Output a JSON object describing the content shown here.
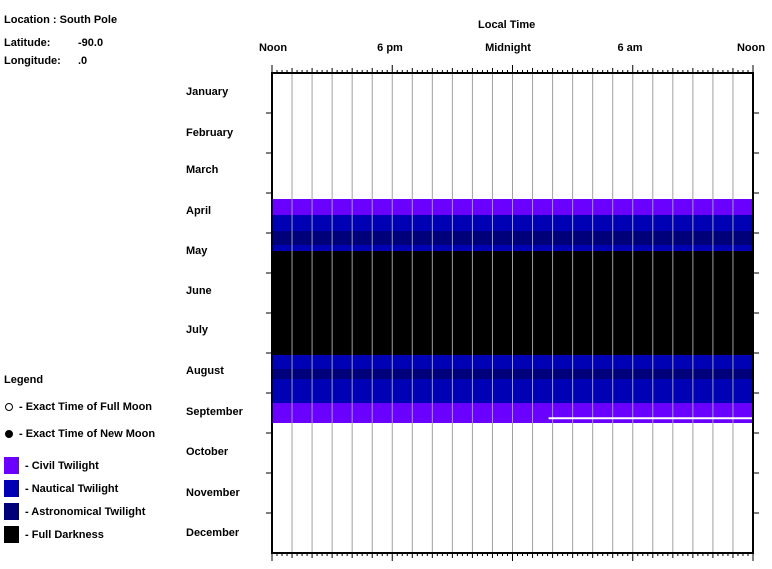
{
  "location": {
    "location_label": "Location :",
    "location_value": "South Pole",
    "latitude_label": "Latitude:",
    "latitude_value": "-90.0",
    "longitude_label": "Longitude:",
    "longitude_value": ".0"
  },
  "legend": {
    "title": "Legend",
    "items": [
      {
        "label": "- Exact Time of Full Moon",
        "symbol": "open-circle"
      },
      {
        "label": "- Exact Time of New Moon",
        "symbol": "filled-circle"
      },
      {
        "label": "- Civil Twilight",
        "color": "#6a00ff"
      },
      {
        "label": "- Nautical Twilight",
        "color": "#0000b4"
      },
      {
        "label": "- Astronomical Twilight",
        "color": "#00007a"
      },
      {
        "label": "- Full Darkness",
        "color": "#000000"
      }
    ]
  },
  "chart_data": {
    "type": "heatmap",
    "title": "Local Time",
    "x_tick_labels": [
      "Noon",
      "6 pm",
      "Midnight",
      "6 am",
      "Noon"
    ],
    "x_range_hours": [
      12,
      36
    ],
    "months": [
      "January",
      "February",
      "March",
      "April",
      "May",
      "June",
      "July",
      "August",
      "September",
      "October",
      "November",
      "December"
    ],
    "colors": {
      "civil": "#6a00ff",
      "nautical": "#0000b4",
      "astronomical": "#00007a",
      "darkness": "#000000",
      "moon_line": "#ffffff",
      "grid": "#a0a0a0"
    },
    "bands": [
      {
        "from_month": 3.15,
        "to_month": 3.55,
        "phase": "civil"
      },
      {
        "from_month": 3.55,
        "to_month": 3.95,
        "phase": "nautical"
      },
      {
        "from_month": 3.95,
        "to_month": 4.3,
        "phase": "astronomical"
      },
      {
        "from_month": 4.3,
        "to_month": 4.45,
        "phase": "nautical"
      },
      {
        "from_month": 4.45,
        "to_month": 7.05,
        "phase": "darkness"
      },
      {
        "from_month": 7.05,
        "to_month": 7.4,
        "phase": "nautical"
      },
      {
        "from_month": 7.4,
        "to_month": 7.65,
        "phase": "astronomical"
      },
      {
        "from_month": 7.65,
        "to_month": 8.25,
        "phase": "nautical"
      },
      {
        "from_month": 8.25,
        "to_month": 8.75,
        "phase": "civil"
      }
    ],
    "moon_lines": [
      {
        "month": 8.63,
        "from_hour": 25.8,
        "to_hour": 36
      }
    ]
  }
}
